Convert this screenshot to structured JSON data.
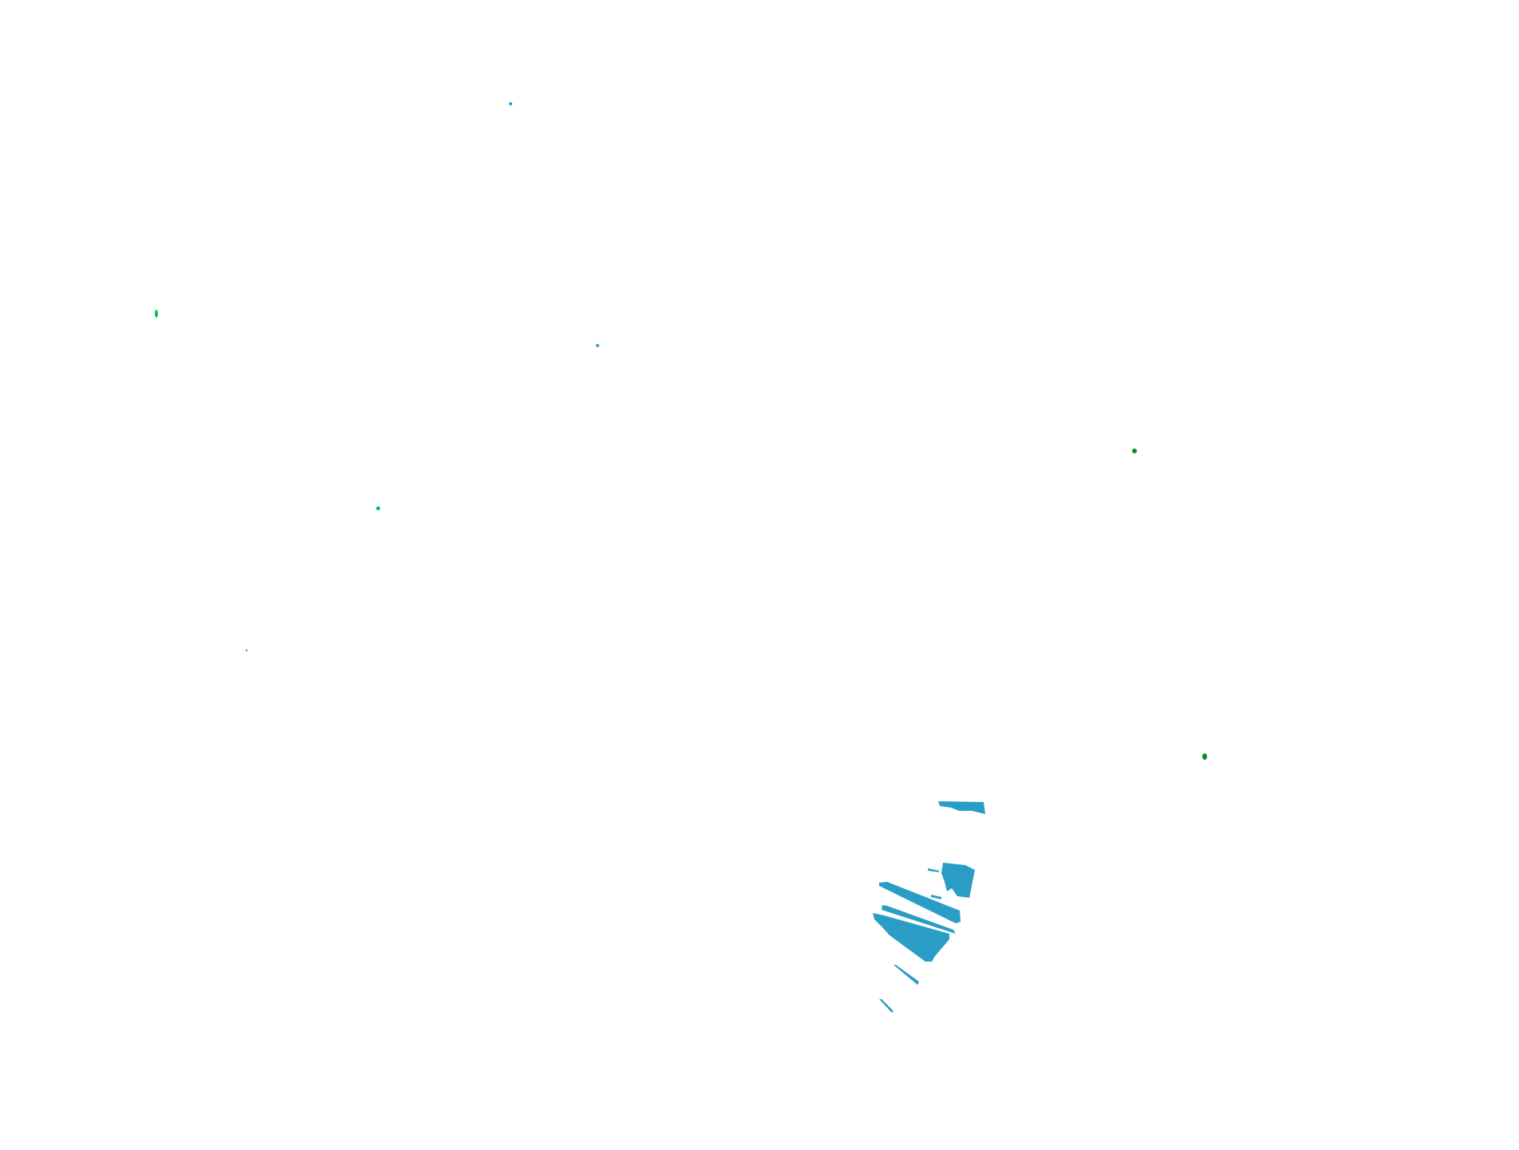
{
  "scene": {
    "background": "#ffffff",
    "colors": {
      "cluster": "#2a9dc6",
      "cluster_highlight": "#2ab5e0",
      "green_point": "#00c050",
      "dark_green_point": "#0a8a2a"
    }
  }
}
